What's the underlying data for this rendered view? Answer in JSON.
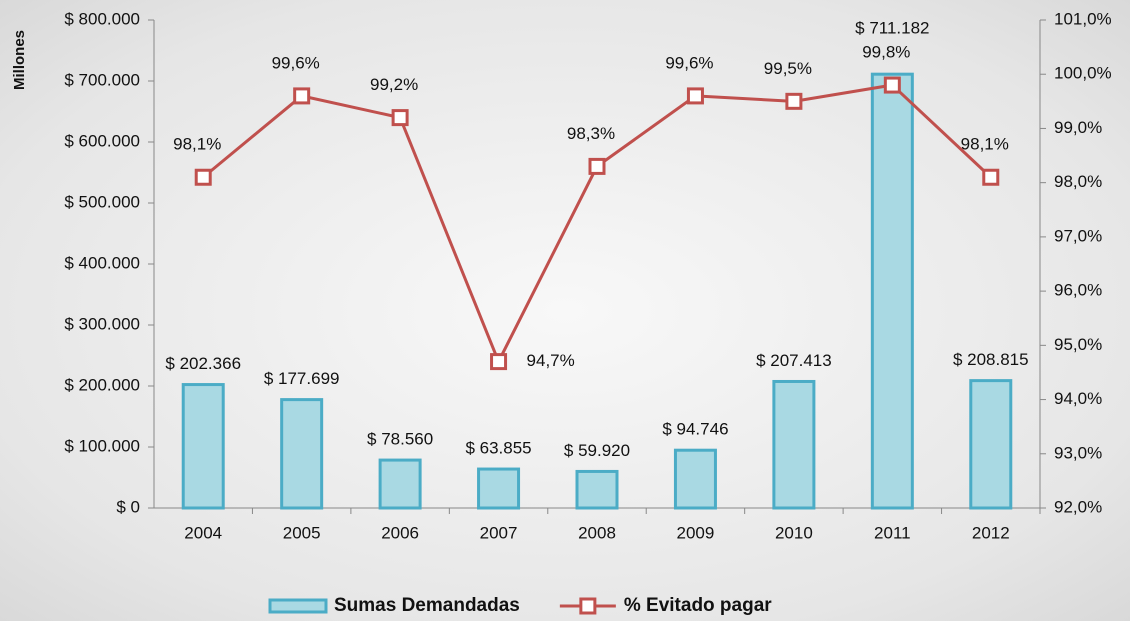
{
  "chart_data": {
    "type": "bar",
    "y_label": "Millones",
    "categories": [
      "2004",
      "2005",
      "2006",
      "2007",
      "2008",
      "2009",
      "2010",
      "2011",
      "2012"
    ],
    "series": [
      {
        "name": "Sumas Demandadas",
        "type": "bar",
        "color": "#a9d9e3",
        "edge_color": "#4bacc6",
        "values": [
          202366,
          177699,
          78560,
          63855,
          59920,
          94746,
          207413,
          711182,
          208815
        ],
        "value_labels": [
          "$ 202.366",
          "$ 177.699",
          "$ 78.560",
          "$ 63.855",
          "$ 59.920",
          "$ 94.746",
          "$ 207.413",
          "$ 711.182",
          "$ 208.815"
        ]
      },
      {
        "name": "% Evitado pagar",
        "type": "line",
        "axis": "y2",
        "color": "#c0504d",
        "values": [
          98.1,
          99.6,
          99.2,
          94.7,
          98.3,
          99.6,
          99.5,
          99.8,
          98.1
        ],
        "value_labels": [
          "98,1%",
          "99,6%",
          "99,2%",
          "94,7%",
          "98,3%",
          "99,6%",
          "99,5%",
          "99,8%",
          "98,1%"
        ]
      }
    ],
    "ylim": [
      0,
      800000
    ],
    "yticks": [
      {
        "value": 0,
        "label": "$ 0"
      },
      {
        "value": 100000,
        "label": "$ 100.000"
      },
      {
        "value": 200000,
        "label": "$ 200.000"
      },
      {
        "value": 300000,
        "label": "$ 300.000"
      },
      {
        "value": 400000,
        "label": "$ 400.000"
      },
      {
        "value": 500000,
        "label": "$ 500.000"
      },
      {
        "value": 600000,
        "label": "$ 600.000"
      },
      {
        "value": 700000,
        "label": "$ 700.000"
      },
      {
        "value": 800000,
        "label": "$ 800.000"
      }
    ],
    "y2lim": [
      92,
      101
    ],
    "y2ticks": [
      {
        "value": 92,
        "label": "92,0%"
      },
      {
        "value": 93,
        "label": "93,0%"
      },
      {
        "value": 94,
        "label": "94,0%"
      },
      {
        "value": 95,
        "label": "95,0%"
      },
      {
        "value": 96,
        "label": "96,0%"
      },
      {
        "value": 97,
        "label": "97,0%"
      },
      {
        "value": 98,
        "label": "98,0%"
      },
      {
        "value": 99,
        "label": "99,0%"
      },
      {
        "value": 100,
        "label": "100,0%"
      },
      {
        "value": 101,
        "label": "101,0%"
      }
    ],
    "legend": "bottom"
  }
}
